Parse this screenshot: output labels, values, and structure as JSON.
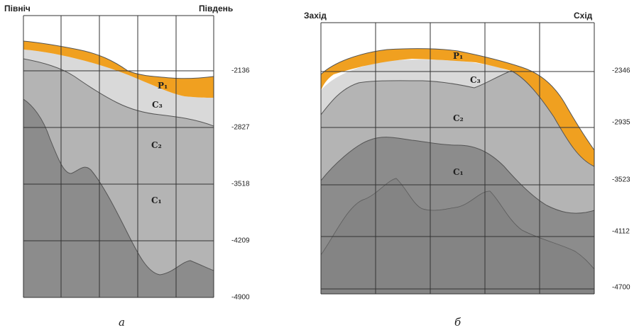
{
  "left_section": {
    "direction_left": "Північ",
    "direction_right": "Південь",
    "depths": [
      "-2136",
      "-2827",
      "-3518",
      "-4209",
      "-4900"
    ],
    "layers": {
      "p1": "P₁",
      "c3": "C₃",
      "c2": "C₂",
      "c1": "C₁"
    },
    "caption": "а"
  },
  "right_section": {
    "direction_left": "Захід",
    "direction_right": "Схід",
    "depths": [
      "-2346",
      "-2935",
      "-3523",
      "-4112",
      "-4700"
    ],
    "layers": {
      "p1": "P₁",
      "c3": "C₃",
      "c2": "C₂",
      "c1": "C₁"
    },
    "caption": "б"
  },
  "colors": {
    "p1": "#f0a020",
    "c3": "#d9d9d9",
    "c2": "#b4b4b4",
    "c1": "#8c8c8c"
  }
}
